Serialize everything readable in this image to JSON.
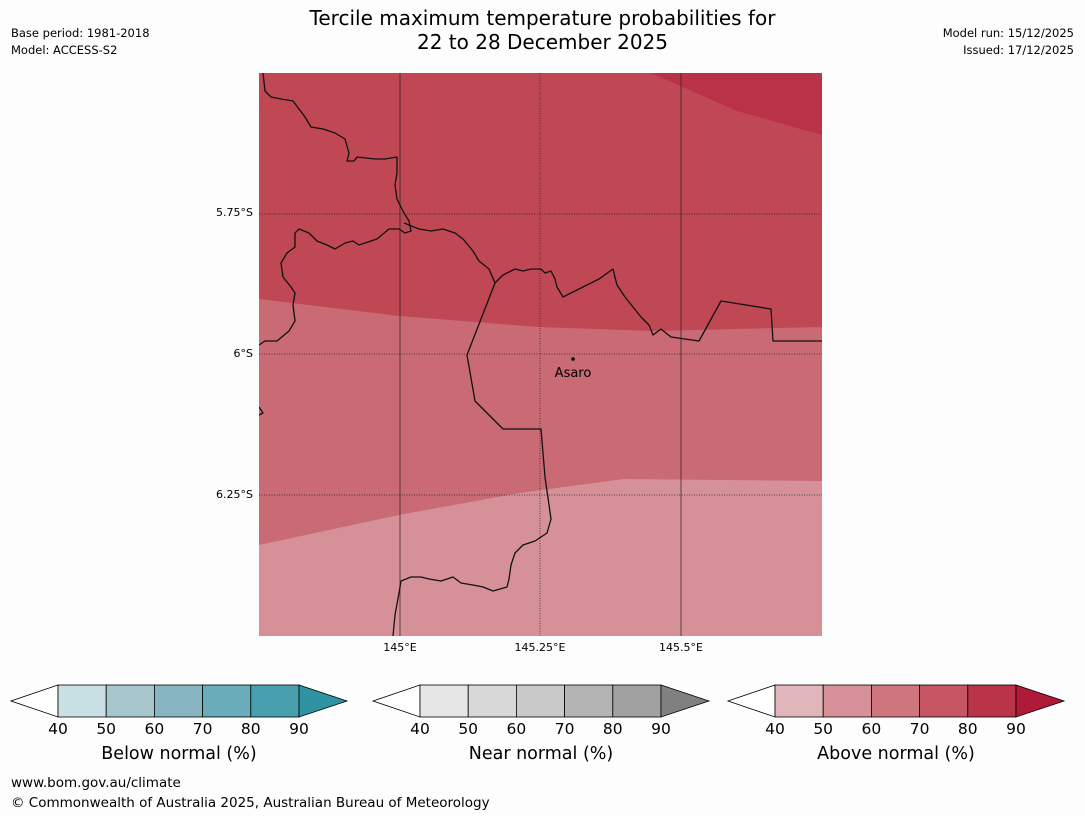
{
  "header": {
    "title_line1": "Tercile maximum temperature probabilities for",
    "title_line2": "22 to 28 December 2025",
    "base_period": "Base period: 1981-2018",
    "model": "Model: ACCESS-S2",
    "model_run": "Model run: 15/12/2025",
    "issued": "Issued: 17/12/2025"
  },
  "map": {
    "lat_labels": [
      "5.75°S",
      "6°S",
      "6.25°S"
    ],
    "lon_labels": [
      "145°E",
      "145.25°E",
      "145.5°E"
    ],
    "place_label": "Asaro",
    "colors": {
      "band_70_80": "#c04855",
      "band_80_90": "#b93248",
      "band_60_70": "#c96a74",
      "band_50_60": "#d69098"
    }
  },
  "colorbars": [
    {
      "label": "Below normal (%)",
      "ticks": [
        "40",
        "50",
        "60",
        "70",
        "80",
        "90"
      ],
      "colors": [
        "#c9e1e5",
        "#a6c7ce",
        "#88b5c2",
        "#6aacb9",
        "#48a0ae",
        "#2e93a3"
      ]
    },
    {
      "label": "Near normal (%)",
      "ticks": [
        "40",
        "50",
        "60",
        "70",
        "80",
        "90"
      ],
      "colors": [
        "#e6e6e6",
        "#d8d8d8",
        "#c9c9c9",
        "#b4b4b4",
        "#a1a1a1",
        "#808080"
      ]
    },
    {
      "label": "Above normal (%)",
      "ticks": [
        "40",
        "50",
        "60",
        "70",
        "80",
        "90"
      ],
      "colors": [
        "#e0b6bb",
        "#d69098",
        "#cf757e",
        "#c65663",
        "#bb3348",
        "#ae1a38"
      ]
    }
  ],
  "footer": {
    "website": "www.bom.gov.au/climate",
    "copyright": "© Commonwealth of Australia 2025, Australian Bureau of Meteorology"
  }
}
